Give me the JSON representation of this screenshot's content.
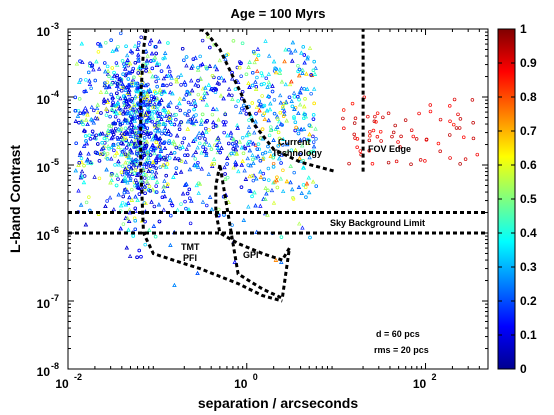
{
  "chart_data": {
    "type": "scatter",
    "title": "Age = 100 Myrs",
    "xlabel": "separation / arcseconds",
    "ylabel": "L-band Contrast",
    "x_scale": "log",
    "y_scale": "log",
    "xlim": [
      0.01,
      500
    ],
    "ylim": [
      1e-08,
      0.001
    ],
    "x_ticks": [
      {
        "value": 0.01,
        "base": "10",
        "exp": "-2"
      },
      {
        "value": 1,
        "base": "10",
        "exp": "0"
      },
      {
        "value": 100,
        "base": "10",
        "exp": "2"
      }
    ],
    "y_ticks": [
      {
        "value": 1e-08,
        "base": "10",
        "exp": "-8"
      },
      {
        "value": 1e-07,
        "base": "10",
        "exp": "-7"
      },
      {
        "value": 1e-06,
        "base": "10",
        "exp": "-6"
      },
      {
        "value": 1e-05,
        "base": "10",
        "exp": "-5"
      },
      {
        "value": 0.0001,
        "base": "10",
        "exp": "-4"
      },
      {
        "value": 0.001,
        "base": "10",
        "exp": "-3"
      }
    ],
    "colorbar": {
      "min": 0,
      "max": 1,
      "ticks": [
        "0",
        "0.1",
        "0.2",
        "0.3",
        "0.4",
        "0.5",
        "0.6",
        "0.7",
        "0.8",
        "0.9",
        "1"
      ],
      "colormap": "jet"
    },
    "legend": "none",
    "grid": false,
    "curves": [
      {
        "label": "Sky Background Limit",
        "style": "dashed",
        "x": [
          0.01,
          500
        ],
        "y": [
          1e-06,
          1e-06
        ]
      },
      {
        "label": "",
        "style": "dashed",
        "x": [
          0.01,
          500
        ],
        "y": [
          2e-06,
          2e-06
        ]
      },
      {
        "label": "FOV Edge",
        "style": "dashed",
        "x": [
          20,
          20
        ],
        "y": [
          8e-06,
          0.001
        ]
      },
      {
        "label": "TMT PFI",
        "style": "dashed",
        "x": [
          0.075,
          0.07,
          0.065,
          0.065,
          0.07,
          0.09,
          0.15,
          0.3,
          0.8,
          1.5,
          2.5
        ],
        "y": [
          0.001,
          0.0005,
          0.0001,
          1e-05,
          1e-06,
          5e-07,
          4e-07,
          3e-07,
          1.8e-07,
          1.2e-07,
          1e-07
        ]
      },
      {
        "label": "GPI",
        "style": "dashed",
        "x": [
          0.5,
          0.45,
          0.45,
          0.5,
          0.8,
          1.5,
          2.5,
          3.0,
          2.5,
          1.5,
          0.8,
          0.5
        ],
        "y": [
          1e-05,
          5e-06,
          2e-06,
          1e-06,
          7e-07,
          5e-07,
          4e-07,
          6e-07,
          1.1e-07,
          1.5e-07,
          2.5e-07,
          1e-05
        ]
      },
      {
        "label": "Current Technology",
        "style": "dashed",
        "x": [
          0.3,
          0.35,
          0.5,
          0.7,
          0.9,
          1.2,
          2.0,
          4.0,
          10.0
        ],
        "y": [
          0.001,
          0.0009,
          0.0005,
          0.0002,
          0.0001,
          4e-05,
          1.7e-05,
          1.1e-05,
          8e-06
        ]
      }
    ],
    "scatter_description": {
      "x_range": [
        0.01,
        20
      ],
      "y_range": [
        1e-08,
        0.001
      ],
      "color_range": [
        0,
        1
      ],
      "sparse_tail": {
        "x_range": [
          10,
          400
        ],
        "y_range": [
          1e-05,
          0.0001
        ],
        "color": 0.95
      }
    }
  },
  "annotations": {
    "current_technology": [
      "Current",
      "Technology"
    ],
    "fov_edge": "FOV Edge",
    "sky_background": "Sky Background Limit",
    "tmt_pfi": [
      "TMT",
      "PFI"
    ],
    "gpi": "GPI",
    "distance": "d = 60 pcs",
    "rms": "rms = 20 pcs"
  },
  "colors": {
    "axis": "#000000",
    "background": "#ffffff"
  }
}
